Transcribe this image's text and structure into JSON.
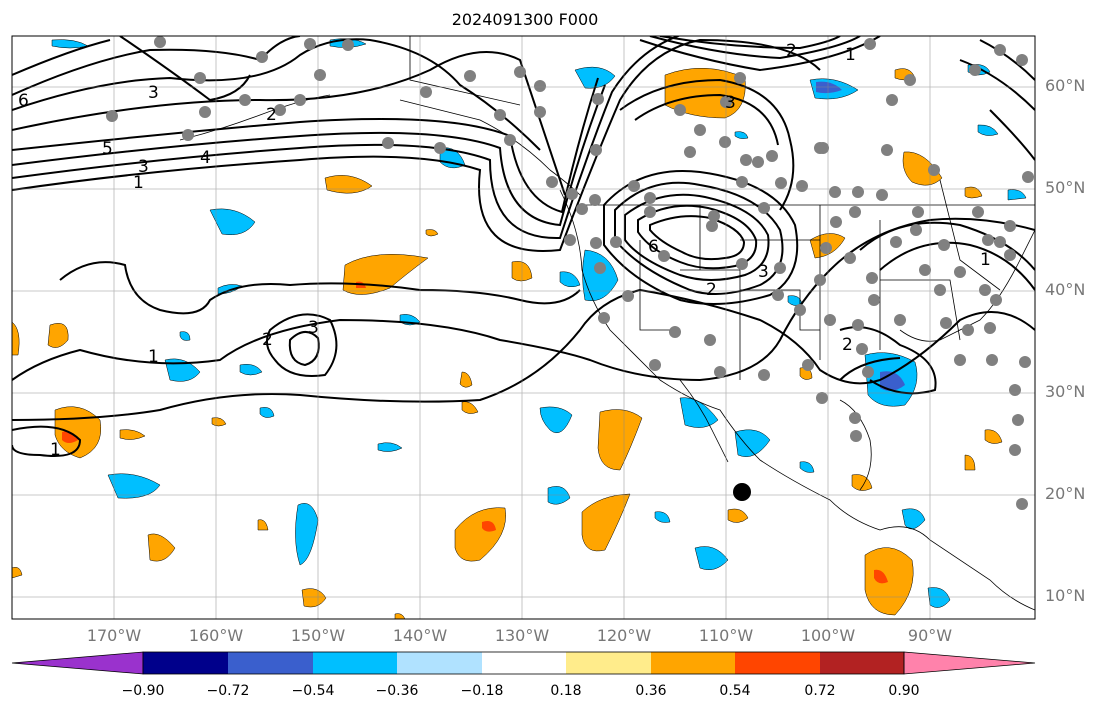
{
  "title": "2024091300 F000",
  "lon_labels": [
    "170°W",
    "160°W",
    "150°W",
    "140°W",
    "130°W",
    "120°W",
    "110°W",
    "100°W",
    "90°W"
  ],
  "lat_labels": [
    "60°N",
    "50°N",
    "40°N",
    "30°N",
    "20°N",
    "10°N"
  ],
  "contour_labels": [
    "5",
    "3",
    "1",
    "4",
    "6",
    "3",
    "2",
    "1",
    "2",
    "3",
    "1",
    "1",
    "3",
    "2",
    "2",
    "1",
    "6",
    "3",
    "2"
  ],
  "colorbar": {
    "ticks": [
      "−0.90",
      "−0.72",
      "−0.54",
      "−0.36",
      "−0.18",
      "0.18",
      "0.36",
      "0.54",
      "0.72",
      "0.90"
    ],
    "colors": [
      "#9a32cd",
      "#00008b",
      "#3a5fcd",
      "#00bfff",
      "#b0e2ff",
      "#ffffff",
      "#ffec8b",
      "#ffa500",
      "#ff4500",
      "#b22222",
      "#ff82ab"
    ]
  },
  "marker_colors": {
    "station": "#808080",
    "storm_center": "#000000"
  }
}
